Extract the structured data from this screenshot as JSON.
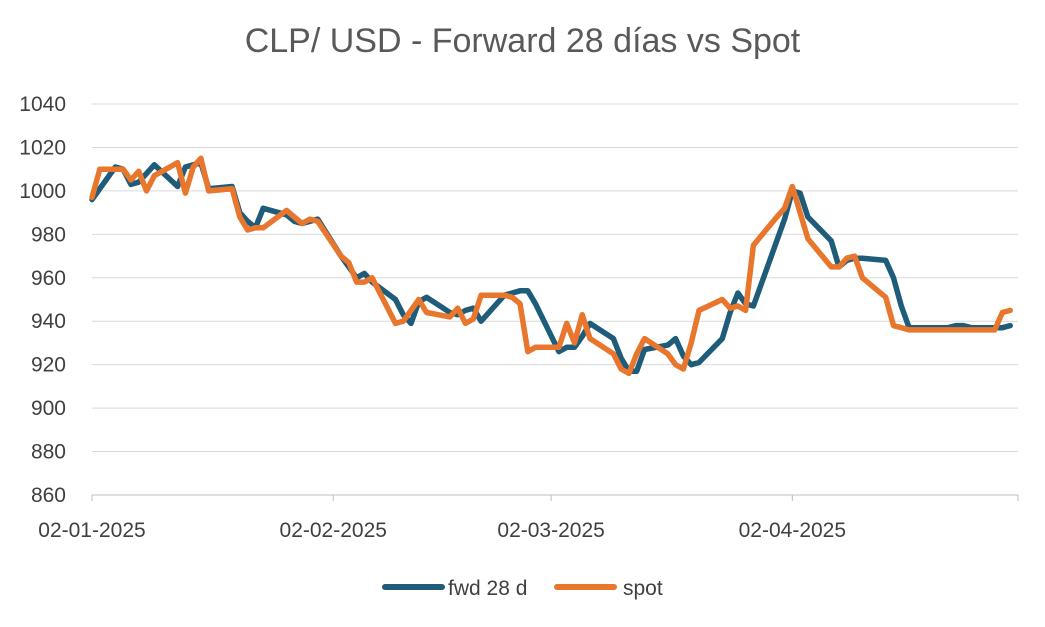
{
  "chart_data": {
    "type": "line",
    "title": "CLP/ USD - Forward 28 días vs Spot",
    "xlabel": "",
    "ylabel": "",
    "ylim": [
      860,
      1040
    ],
    "yticks": [
      860,
      880,
      900,
      920,
      940,
      960,
      980,
      1000,
      1020,
      1040
    ],
    "x_tick_labels": [
      "02-01-2025",
      "02-02-2025",
      "02-03-2025",
      "02-04-2025"
    ],
    "x_tick_dates": [
      "2025-01-02",
      "2025-02-02",
      "2025-03-02",
      "2025-04-02"
    ],
    "xlim": [
      "2025-01-02",
      "2025-05-01"
    ],
    "grid": "horizontal",
    "legend": "bottom",
    "series": [
      {
        "name": "fwd 28 d",
        "color": "#1F5C7A",
        "x": [
          "2025-01-02",
          "2025-01-05",
          "2025-01-06",
          "2025-01-07",
          "2025-01-08",
          "2025-01-09",
          "2025-01-10",
          "2025-01-13",
          "2025-01-14",
          "2025-01-15",
          "2025-01-16",
          "2025-01-17",
          "2025-01-20",
          "2025-01-21",
          "2025-01-22",
          "2025-01-23",
          "2025-01-24",
          "2025-01-27",
          "2025-01-28",
          "2025-01-29",
          "2025-01-30",
          "2025-01-31",
          "2025-02-03",
          "2025-02-04",
          "2025-02-05",
          "2025-02-06",
          "2025-02-07",
          "2025-02-10",
          "2025-02-11",
          "2025-02-12",
          "2025-02-13",
          "2025-02-14",
          "2025-02-17",
          "2025-02-18",
          "2025-02-19",
          "2025-02-20",
          "2025-02-21",
          "2025-02-24",
          "2025-02-25",
          "2025-02-26",
          "2025-02-27",
          "2025-02-28",
          "2025-03-03",
          "2025-03-04",
          "2025-03-05",
          "2025-03-06",
          "2025-03-07",
          "2025-03-10",
          "2025-03-11",
          "2025-03-12",
          "2025-03-13",
          "2025-03-14",
          "2025-03-17",
          "2025-03-18",
          "2025-03-19",
          "2025-03-20",
          "2025-03-21",
          "2025-03-24",
          "2025-03-25",
          "2025-03-26",
          "2025-03-27",
          "2025-03-28",
          "2025-03-31",
          "2025-04-01",
          "2025-04-02",
          "2025-04-03",
          "2025-04-04",
          "2025-04-07",
          "2025-04-08",
          "2025-04-09",
          "2025-04-10",
          "2025-04-11",
          "2025-04-14",
          "2025-04-15",
          "2025-04-16",
          "2025-04-17",
          "2025-04-21",
          "2025-04-22",
          "2025-04-23",
          "2025-04-24",
          "2025-04-25",
          "2025-04-28",
          "2025-04-29",
          "2025-04-30"
        ],
        "values": [
          996,
          1011,
          1010,
          1003,
          1004,
          1008,
          1012,
          1002,
          1011,
          1012,
          1013,
          1001,
          1002,
          990,
          986,
          983,
          992,
          989,
          986,
          985,
          986,
          987,
          970,
          965,
          960,
          962,
          958,
          950,
          943,
          939,
          949,
          951,
          944,
          943,
          945,
          946,
          940,
          952,
          953,
          954,
          954,
          948,
          926,
          928,
          928,
          933,
          939,
          932,
          923,
          917,
          917,
          927,
          929,
          932,
          924,
          920,
          921,
          932,
          944,
          953,
          948,
          947,
          977,
          987,
          1000,
          999,
          988,
          977,
          965,
          968,
          969,
          969,
          968,
          960,
          947,
          937,
          937,
          937,
          938,
          938,
          937,
          937,
          937,
          938
        ]
      },
      {
        "name": "spot",
        "color": "#E8762C",
        "x": [
          "2025-01-02",
          "2025-01-03",
          "2025-01-06",
          "2025-01-07",
          "2025-01-08",
          "2025-01-09",
          "2025-01-10",
          "2025-01-13",
          "2025-01-14",
          "2025-01-15",
          "2025-01-16",
          "2025-01-17",
          "2025-01-20",
          "2025-01-21",
          "2025-01-22",
          "2025-01-23",
          "2025-01-24",
          "2025-01-27",
          "2025-01-28",
          "2025-01-29",
          "2025-01-30",
          "2025-01-31",
          "2025-02-03",
          "2025-02-04",
          "2025-02-05",
          "2025-02-06",
          "2025-02-07",
          "2025-02-10",
          "2025-02-11",
          "2025-02-12",
          "2025-02-13",
          "2025-02-14",
          "2025-02-17",
          "2025-02-18",
          "2025-02-19",
          "2025-02-20",
          "2025-02-21",
          "2025-02-24",
          "2025-02-25",
          "2025-02-26",
          "2025-02-27",
          "2025-02-28",
          "2025-03-03",
          "2025-03-04",
          "2025-03-05",
          "2025-03-06",
          "2025-03-07",
          "2025-03-10",
          "2025-03-11",
          "2025-03-12",
          "2025-03-13",
          "2025-03-14",
          "2025-03-17",
          "2025-03-18",
          "2025-03-19",
          "2025-03-20",
          "2025-03-21",
          "2025-03-24",
          "2025-03-25",
          "2025-03-26",
          "2025-03-27",
          "2025-03-28",
          "2025-03-31",
          "2025-04-01",
          "2025-04-02",
          "2025-04-03",
          "2025-04-04",
          "2025-04-07",
          "2025-04-08",
          "2025-04-09",
          "2025-04-10",
          "2025-04-11",
          "2025-04-14",
          "2025-04-15",
          "2025-04-16",
          "2025-04-17",
          "2025-04-21",
          "2025-04-22",
          "2025-04-23",
          "2025-04-24",
          "2025-04-25",
          "2025-04-28",
          "2025-04-29",
          "2025-04-30"
        ],
        "values": [
          997,
          1010,
          1010,
          1005,
          1009,
          1000,
          1007,
          1013,
          999,
          1011,
          1015,
          1000,
          1001,
          988,
          982,
          983,
          983,
          991,
          988,
          985,
          987,
          986,
          970,
          967,
          958,
          958,
          960,
          939,
          940,
          945,
          950,
          944,
          942,
          946,
          939,
          941,
          952,
          952,
          951,
          948,
          926,
          928,
          928,
          939,
          930,
          943,
          932,
          925,
          918,
          916,
          925,
          932,
          925,
          920,
          918,
          930,
          945,
          950,
          946,
          947,
          945,
          975,
          988,
          992,
          1002,
          990,
          978,
          965,
          965,
          969,
          970,
          960,
          951,
          938,
          937,
          936,
          936,
          936,
          936,
          936,
          936,
          936,
          944,
          945
        ]
      }
    ]
  }
}
